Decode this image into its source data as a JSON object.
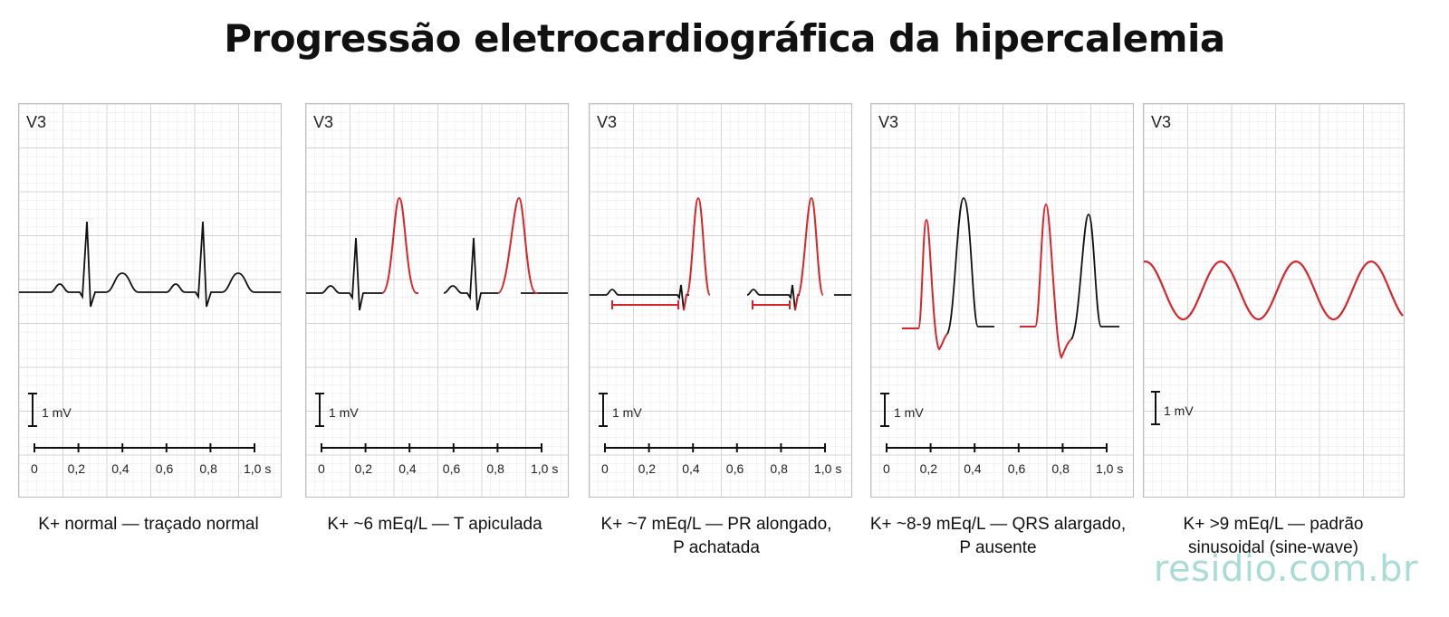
{
  "title": "Progressão eletrocardiográfica da hipercalemia",
  "watermark": "residio.com.br",
  "colors": {
    "normal_trace": "#111111",
    "highlight_trace": "#d6262b",
    "grid_minor": "#ececec",
    "grid_major": "#d4d4d4"
  },
  "panels": [
    {
      "lead": "V3",
      "scale": "1 mV",
      "ticks": [
        "0",
        "0,2",
        "0,4",
        "0,6",
        "0,8",
        "1,0 s"
      ],
      "caption_lines": [
        "K+ normal — traçado normal"
      ],
      "has_time_axis": true
    },
    {
      "lead": "V3",
      "scale": "1 mV",
      "ticks": [
        "0",
        "0,2",
        "0,4",
        "0,6",
        "0,8",
        "1,0 s"
      ],
      "caption_lines": [
        "K+ ~6 mEq/L — T apiculada"
      ],
      "has_time_axis": true
    },
    {
      "lead": "V3",
      "scale": "1 mV",
      "ticks": [
        "0",
        "0,2",
        "0,4",
        "0,6",
        "0,8",
        "1,0 s"
      ],
      "caption_lines": [
        "K+ ~7 mEq/L — PR alongado,",
        "P achatada"
      ],
      "has_time_axis": true
    },
    {
      "lead": "V3",
      "scale": "1 mV",
      "ticks": [
        "0",
        "0,2",
        "0,4",
        "0,6",
        "0,8",
        "1,0 s"
      ],
      "caption_lines": [
        "K+ ~8-9 mEq/L — QRS alargado,",
        "P ausente"
      ],
      "has_time_axis": true
    },
    {
      "lead": "V3",
      "scale": "1 mV",
      "ticks": [],
      "caption_lines": [
        "K+ >9 mEq/L — padrão",
        "sinusoidal (sine-wave)"
      ],
      "has_time_axis": false
    }
  ]
}
